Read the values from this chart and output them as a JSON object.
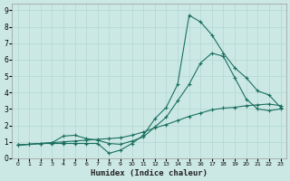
{
  "xlabel": "Humidex (Indice chaleur)",
  "bg_color": "#cce8e4",
  "grid_color": "#b0d8d0",
  "line_color": "#1a7060",
  "xlim": [
    -0.5,
    23.5
  ],
  "ylim": [
    0,
    9.4
  ],
  "xticks": [
    0,
    1,
    2,
    3,
    4,
    5,
    6,
    7,
    8,
    9,
    10,
    11,
    12,
    13,
    14,
    15,
    16,
    17,
    18,
    19,
    20,
    21,
    22,
    23
  ],
  "yticks": [
    0,
    1,
    2,
    3,
    4,
    5,
    6,
    7,
    8,
    9
  ],
  "series1_x": [
    0,
    1,
    2,
    3,
    4,
    5,
    6,
    7,
    8,
    9,
    10,
    11,
    12,
    13,
    14,
    15,
    16,
    17,
    18,
    19,
    20,
    21,
    22,
    23
  ],
  "series1_y": [
    0.8,
    0.85,
    0.9,
    0.9,
    0.9,
    0.9,
    0.9,
    0.9,
    0.3,
    0.5,
    0.9,
    1.4,
    2.4,
    3.1,
    4.5,
    8.7,
    8.3,
    7.5,
    6.4,
    5.5,
    4.9,
    4.1,
    3.85,
    3.1
  ],
  "series2_x": [
    0,
    1,
    2,
    3,
    4,
    5,
    6,
    7,
    8,
    9,
    10,
    11,
    12,
    13,
    14,
    15,
    16,
    17,
    18,
    19,
    20,
    21,
    22,
    23
  ],
  "series2_y": [
    0.8,
    0.85,
    0.9,
    0.95,
    1.35,
    1.4,
    1.2,
    1.1,
    0.9,
    0.85,
    1.05,
    1.3,
    1.9,
    2.5,
    3.5,
    4.5,
    5.8,
    6.4,
    6.2,
    4.9,
    3.6,
    3.0,
    2.9,
    3.0
  ],
  "series3_x": [
    0,
    1,
    2,
    3,
    4,
    5,
    6,
    7,
    8,
    9,
    10,
    11,
    12,
    13,
    14,
    15,
    16,
    17,
    18,
    19,
    20,
    21,
    22,
    23
  ],
  "series3_y": [
    0.8,
    0.85,
    0.9,
    0.95,
    1.0,
    1.05,
    1.1,
    1.15,
    1.2,
    1.25,
    1.4,
    1.6,
    1.85,
    2.05,
    2.3,
    2.55,
    2.75,
    2.95,
    3.05,
    3.1,
    3.2,
    3.25,
    3.3,
    3.2
  ]
}
